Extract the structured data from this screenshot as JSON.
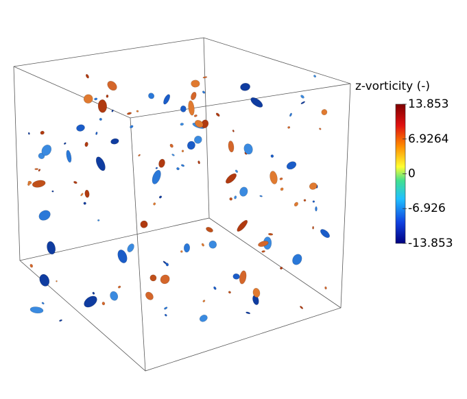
{
  "legend": {
    "title": "z-vorticity (-)",
    "range": [
      -13.853,
      13.853
    ],
    "ticks": [
      13.853,
      6.9264,
      0,
      -6.926,
      -13.853
    ]
  }
}
